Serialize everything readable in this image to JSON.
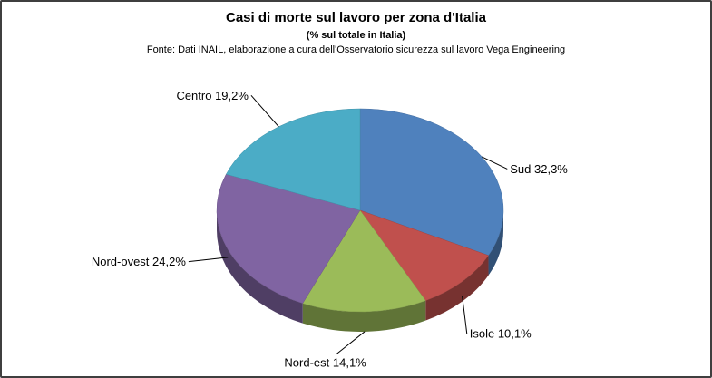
{
  "chart_data": {
    "type": "pie",
    "effect": "3d",
    "title": "Casi di morte sul lavoro per zona d'Italia",
    "subtitle": "(% sul totale in Italia)",
    "source": "Fonte: Dati INAIL, elaborazione a cura dell'Osservatorio sicurezza sul lavoro Vega Engineering",
    "unit": "%",
    "start_angle_deg": 0,
    "direction": "clockwise",
    "legend": "none",
    "slices": [
      {
        "name": "Sud",
        "value": 32.3,
        "label": "Sud 32,3%",
        "color": "#4F81BD"
      },
      {
        "name": "Isole",
        "value": 10.1,
        "label": "Isole 10,1%",
        "color": "#C0504D"
      },
      {
        "name": "Nord-est",
        "value": 14.1,
        "label": "Nord-est 14,1%",
        "color": "#9BBB59"
      },
      {
        "name": "Nord-ovest",
        "value": 24.2,
        "label": "Nord-ovest 24,2%",
        "color": "#8064A2"
      },
      {
        "name": "Centro",
        "value": 19.2,
        "label": "Centro 19,2%",
        "color": "#4BACC6"
      }
    ]
  }
}
